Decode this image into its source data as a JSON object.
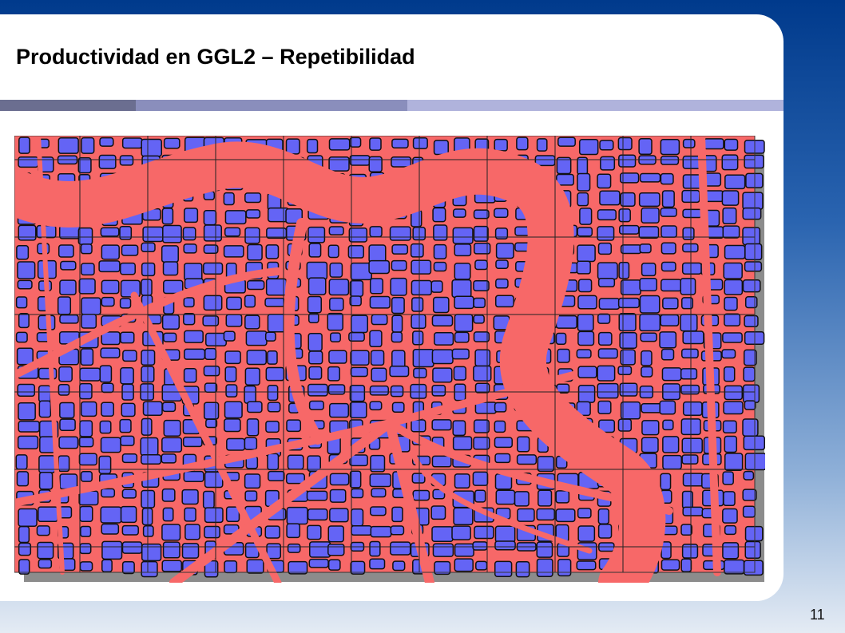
{
  "slide": {
    "title": "Productividad en GGL2 – Repetibilidad",
    "page_number": "11"
  }
}
